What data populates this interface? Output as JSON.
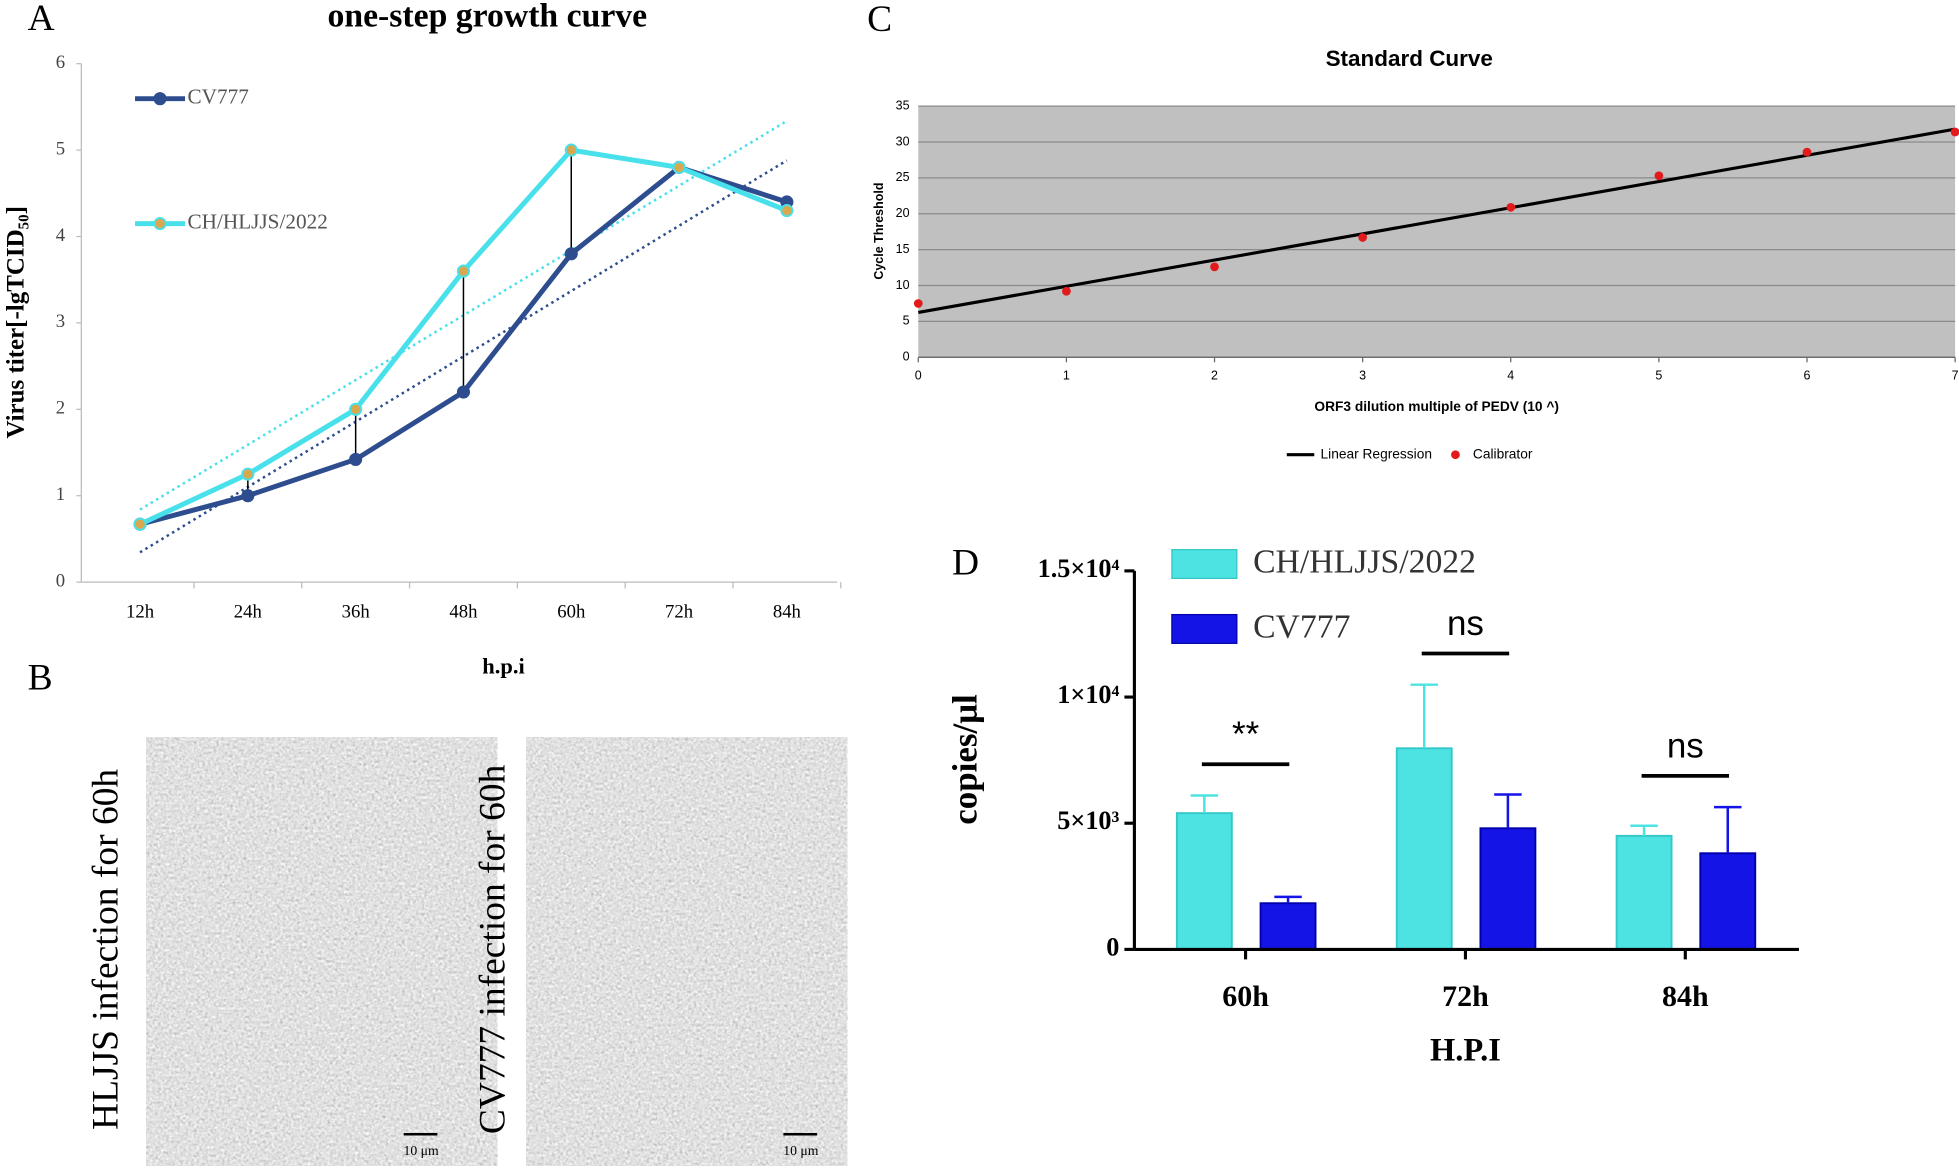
{
  "panel_labels": [
    "A",
    "B",
    "C",
    "D"
  ],
  "panel_b": {
    "images": [
      {
        "caption": "HLJJS infection for 60h",
        "scale_bar": "10 μm"
      },
      {
        "caption": "CV777 infection for 60h",
        "scale_bar": "10 μm"
      }
    ]
  },
  "chart_data": [
    {
      "type": "line",
      "title": "one-step growth curve",
      "xlabel": "h.p.i",
      "ylabel": "Virus titer[-lgTCID₅₀]",
      "categories": [
        "12h",
        "24h",
        "36h",
        "48h",
        "60h",
        "72h",
        "84h"
      ],
      "series": [
        {
          "name": "CV777",
          "color": "#2e4d8f",
          "marker_color": "#2e4d8f",
          "values": [
            0.67,
            1.0,
            1.42,
            2.2,
            3.8,
            4.8,
            4.4
          ]
        },
        {
          "name": "CH/HLJJS/2022",
          "color": "#48e0ea",
          "marker_color": "#d9a84e",
          "values": [
            0.67,
            1.25,
            2.0,
            3.6,
            5.0,
            4.8,
            4.3
          ]
        }
      ],
      "ylim": [
        0,
        6
      ],
      "yticks": [
        0,
        1,
        2,
        3,
        4,
        5,
        6
      ],
      "trendline": true,
      "difference_lines": true
    },
    {
      "type": "scatter",
      "title": "Standard Curve",
      "xlabel": "ORF3 dilution multiple of PEDV (10 ^)",
      "ylabel": "Cycle Threshold",
      "x": [
        0,
        1,
        2,
        3,
        4,
        5,
        6,
        7
      ],
      "series": [
        {
          "name": "Calibrator",
          "color": "#e31a1c",
          "values": [
            7.5,
            9.2,
            12.6,
            16.7,
            20.9,
            25.3,
            28.6,
            31.4
          ]
        }
      ],
      "regression": {
        "name": "Linear Regression",
        "color": "#000000"
      },
      "xlim": [
        0,
        7
      ],
      "ylim": [
        0,
        35
      ],
      "xticks": [
        0,
        1,
        2,
        3,
        4,
        5,
        6,
        7
      ],
      "yticks": [
        0,
        5,
        10,
        15,
        20,
        25,
        30,
        35
      ],
      "grid": true,
      "background": "#c0c0c0"
    },
    {
      "type": "bar",
      "xlabel": "H.P.I",
      "ylabel": "copies/μl",
      "categories": [
        "60h",
        "72h",
        "84h"
      ],
      "series": [
        {
          "name": "CH/HLJJS/2022",
          "color": "#4de3e3",
          "values": [
            5400,
            7970,
            4500
          ],
          "errors": [
            700,
            2520,
            400
          ]
        },
        {
          "name": "CV777",
          "color": "#1414e6",
          "values": [
            1830,
            4800,
            3810
          ],
          "errors": [
            250,
            1340,
            1830
          ]
        }
      ],
      "annotations": [
        "**",
        "ns",
        "ns"
      ],
      "ylim": [
        0,
        15000
      ],
      "yticks": [
        0,
        {
          "value": 5000,
          "label": "5×10³"
        },
        {
          "value": 10000,
          "label": "1×10⁴"
        },
        {
          "value": 15000,
          "label": "1.5×10⁴"
        }
      ],
      "legend": "top-left"
    }
  ]
}
